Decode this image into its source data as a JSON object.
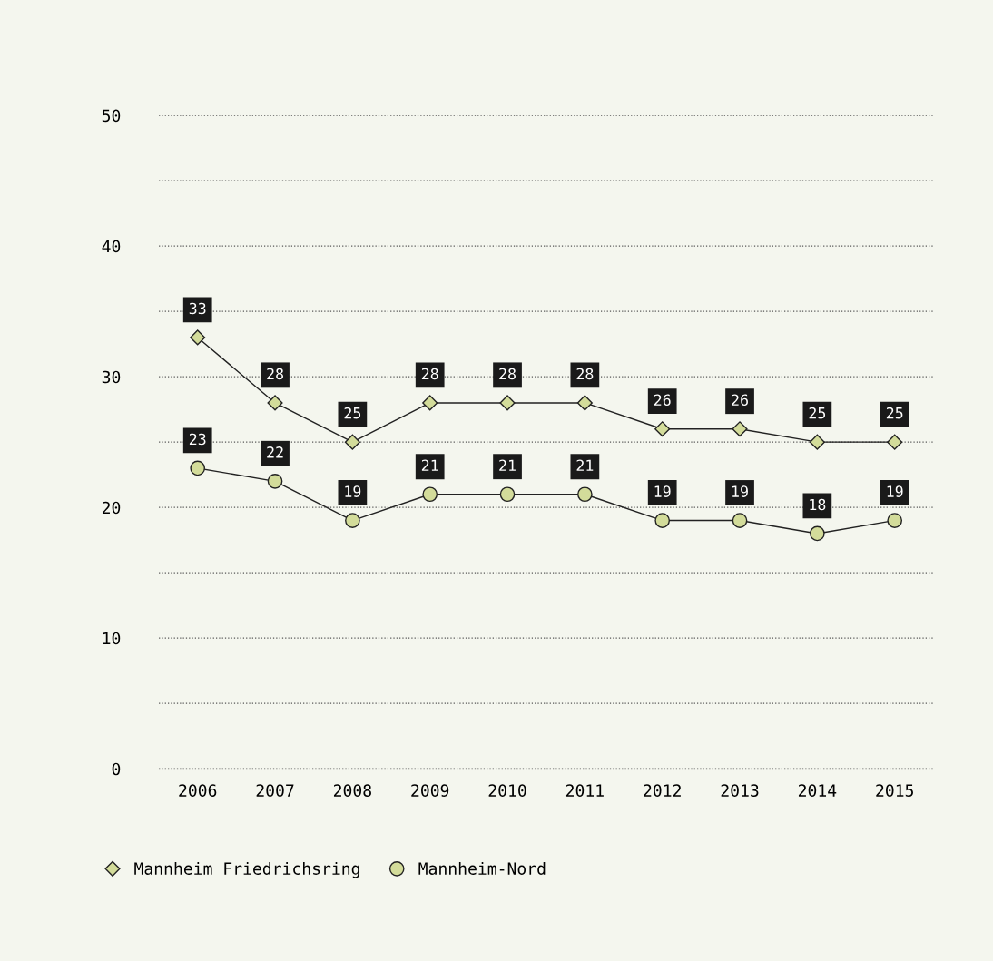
{
  "chart_data": {
    "type": "line",
    "categories": [
      "2006",
      "2007",
      "2008",
      "2009",
      "2010",
      "2011",
      "2012",
      "2013",
      "2014",
      "2015"
    ],
    "series": [
      {
        "name": "Mannheim Friedrichsring",
        "color": "#d3dc9a",
        "marker": "diamond",
        "values": [
          33,
          28,
          25,
          28,
          28,
          28,
          26,
          26,
          25,
          25
        ]
      },
      {
        "name": "Mannheim-Nord",
        "color": "#d3dc9a",
        "marker": "circle",
        "values": [
          23,
          22,
          19,
          21,
          21,
          21,
          19,
          19,
          18,
          19
        ]
      }
    ],
    "ylim": [
      0,
      50
    ],
    "yticks": [
      0,
      {
        "value": 5,
        "label": null
      },
      10,
      {
        "value": 15,
        "label": null
      },
      20,
      {
        "value": 25,
        "label": null
      },
      30,
      {
        "value": 35,
        "label": null
      },
      40,
      {
        "value": 45,
        "label": null
      },
      50
    ],
    "grid": "y",
    "legend": "bottom left",
    "data_labels": true,
    "line_style": "solid"
  }
}
